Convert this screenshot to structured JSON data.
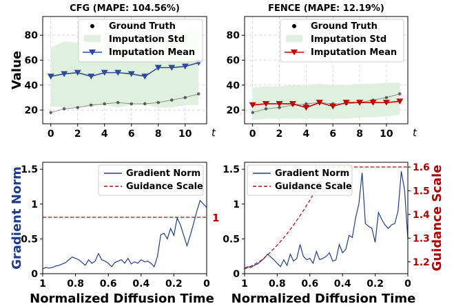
{
  "chart_data": [
    {
      "type": "line",
      "title": "CFG (MAPE: 104.56%)",
      "ylabel": "Value",
      "xlabel": "t",
      "xlim": [
        -0.6,
        11.6
      ],
      "ylim": [
        9,
        95
      ],
      "xticks": [
        0,
        2,
        4,
        6,
        8,
        10
      ],
      "yticks": [
        20,
        40,
        60,
        80
      ],
      "grid": true,
      "legend_position": "top-right",
      "x": [
        0,
        1,
        2,
        3,
        4,
        5,
        6,
        7,
        8,
        9,
        10,
        11
      ],
      "series": [
        {
          "name": "Ground Truth",
          "kind": "points",
          "color": "#000000",
          "values": [
            18,
            21,
            22,
            24,
            25,
            26,
            25,
            25,
            26,
            28,
            30,
            33
          ]
        },
        {
          "name": "Imputation Std",
          "kind": "band",
          "color": "#dff0df",
          "lower": [
            23,
            22,
            22,
            23,
            24,
            22,
            24,
            24,
            22,
            22,
            24,
            24
          ],
          "upper": [
            70,
            75,
            74,
            72,
            70,
            72,
            68,
            66,
            74,
            78,
            84,
            86
          ]
        },
        {
          "name": "Imputation Mean",
          "kind": "line",
          "color": "#2e4a9e",
          "marker": "triangle-down",
          "values": [
            47,
            49,
            50,
            47,
            50,
            50,
            49,
            47,
            54,
            54,
            55,
            58
          ]
        }
      ]
    },
    {
      "type": "line",
      "title": "FENCE (MAPE: 12.19%)",
      "ylabel": "",
      "xlabel": "t",
      "xlim": [
        -0.6,
        11.6
      ],
      "ylim": [
        9,
        95
      ],
      "xticks": [
        0,
        2,
        4,
        6,
        8,
        10
      ],
      "yticks": [
        20,
        40,
        60,
        80
      ],
      "grid": true,
      "legend_position": "top-right",
      "x": [
        0,
        1,
        2,
        3,
        4,
        5,
        6,
        7,
        8,
        9,
        10,
        11
      ],
      "series": [
        {
          "name": "Ground Truth",
          "kind": "points",
          "color": "#000000",
          "values": [
            18,
            21,
            22,
            24,
            25,
            26,
            25,
            25,
            26,
            28,
            30,
            33
          ]
        },
        {
          "name": "Imputation Std",
          "kind": "band",
          "color": "#dff0df",
          "lower": [
            12,
            13,
            13,
            13,
            13,
            13,
            13,
            13,
            14,
            14,
            15,
            16
          ],
          "upper": [
            38,
            39,
            39,
            40,
            40,
            41,
            40,
            40,
            41,
            41,
            42,
            42
          ]
        },
        {
          "name": "Imputation Mean",
          "kind": "line",
          "color": "#c00000",
          "marker": "triangle-down",
          "values": [
            24,
            25,
            25,
            25,
            22,
            26,
            23,
            26,
            26,
            26,
            26,
            27
          ]
        }
      ]
    },
    {
      "type": "line",
      "title": "",
      "xlabel": "Normalized Diffusion Time",
      "ylabel": "Gradient Norm",
      "xlim": [
        1.0,
        0.0
      ],
      "ylim": [
        0,
        1.6
      ],
      "xticks": [
        1.0,
        0.8,
        0.6,
        0.4,
        0.2,
        0.0
      ],
      "yticks": [
        0.0,
        0.5,
        1.0,
        1.5
      ],
      "grid": false,
      "legend_position": "top-right",
      "series": [
        {
          "name": "Gradient Norm",
          "color": "#1f3b8c",
          "x": [
            1.0,
            0.98,
            0.96,
            0.94,
            0.92,
            0.9,
            0.88,
            0.86,
            0.84,
            0.82,
            0.8,
            0.78,
            0.76,
            0.74,
            0.72,
            0.7,
            0.68,
            0.66,
            0.64,
            0.62,
            0.6,
            0.58,
            0.56,
            0.54,
            0.52,
            0.5,
            0.48,
            0.46,
            0.44,
            0.42,
            0.4,
            0.38,
            0.36,
            0.34,
            0.32,
            0.3,
            0.28,
            0.26,
            0.24,
            0.22,
            0.2,
            0.18,
            0.16,
            0.14,
            0.12,
            0.1,
            0.08,
            0.06,
            0.04,
            0.02,
            0.0
          ],
          "values": [
            0.07,
            0.09,
            0.08,
            0.09,
            0.11,
            0.12,
            0.14,
            0.16,
            0.2,
            0.24,
            0.22,
            0.2,
            0.16,
            0.12,
            0.2,
            0.15,
            0.18,
            0.29,
            0.2,
            0.18,
            0.15,
            0.1,
            0.16,
            0.18,
            0.2,
            0.15,
            0.22,
            0.14,
            0.17,
            0.15,
            0.2,
            0.17,
            0.18,
            0.15,
            0.1,
            0.25,
            0.56,
            0.58,
            0.5,
            0.65,
            0.55,
            0.8,
            0.7,
            0.55,
            0.4,
            0.55,
            0.72,
            0.9,
            1.05,
            1.0,
            0.95
          ]
        },
        {
          "name": "Guidance Scale",
          "color": "#c00000",
          "style": "dashed",
          "x": [
            1.0,
            0.0
          ],
          "values": [
            0.81,
            0.81
          ]
        }
      ],
      "annotations": [
        {
          "text": "1",
          "color": "#c00000"
        }
      ]
    },
    {
      "type": "line",
      "title": "",
      "xlabel": "Normalized Diffusion Time",
      "ylabel": "",
      "y2label": "Guidance Scale",
      "xlim": [
        1.0,
        0.0
      ],
      "ylim": [
        0,
        1.6
      ],
      "y2lim": [
        1.15,
        1.62
      ],
      "xticks": [
        1.0,
        0.8,
        0.6,
        0.4,
        0.2,
        0.0
      ],
      "yticks": [
        0.0,
        0.5,
        1.0,
        1.5
      ],
      "y2ticks": [
        1.2,
        1.3,
        1.4,
        1.5,
        1.6
      ],
      "grid": false,
      "legend_position": "top-left",
      "series": [
        {
          "name": "Gradient Norm",
          "color": "#1f3b8c",
          "axis": "left",
          "x": [
            1.0,
            0.98,
            0.96,
            0.94,
            0.92,
            0.9,
            0.88,
            0.86,
            0.84,
            0.82,
            0.8,
            0.78,
            0.76,
            0.74,
            0.72,
            0.7,
            0.68,
            0.66,
            0.64,
            0.62,
            0.6,
            0.58,
            0.56,
            0.54,
            0.52,
            0.5,
            0.48,
            0.46,
            0.44,
            0.42,
            0.4,
            0.38,
            0.36,
            0.34,
            0.32,
            0.3,
            0.28,
            0.26,
            0.24,
            0.22,
            0.2,
            0.18,
            0.16,
            0.14,
            0.12,
            0.1,
            0.08,
            0.06,
            0.04,
            0.02,
            0.0
          ],
          "values": [
            0.08,
            0.1,
            0.09,
            0.12,
            0.14,
            0.18,
            0.22,
            0.28,
            0.24,
            0.2,
            0.15,
            0.1,
            0.2,
            0.12,
            0.28,
            0.18,
            0.22,
            0.42,
            0.25,
            0.2,
            0.22,
            0.15,
            0.32,
            0.2,
            0.22,
            0.25,
            0.3,
            0.18,
            0.2,
            0.42,
            0.3,
            0.35,
            0.55,
            0.52,
            0.8,
            1.0,
            1.45,
            0.72,
            0.68,
            0.65,
            0.45,
            0.88,
            0.78,
            0.7,
            0.65,
            0.7,
            0.72,
            0.9,
            1.47,
            1.2,
            0.5
          ]
        },
        {
          "name": "Guidance Scale",
          "color": "#c00000",
          "style": "dashed",
          "axis": "right",
          "x": [
            1.0,
            0.95,
            0.9,
            0.85,
            0.8,
            0.75,
            0.7,
            0.65,
            0.6,
            0.55,
            0.5,
            0.48,
            0.4,
            0.3,
            0.2,
            0.1,
            0.0
          ],
          "values": [
            1.17,
            1.185,
            1.205,
            1.235,
            1.27,
            1.31,
            1.355,
            1.405,
            1.46,
            1.52,
            1.585,
            1.6,
            1.6,
            1.6,
            1.6,
            1.6,
            1.6
          ]
        }
      ]
    }
  ]
}
